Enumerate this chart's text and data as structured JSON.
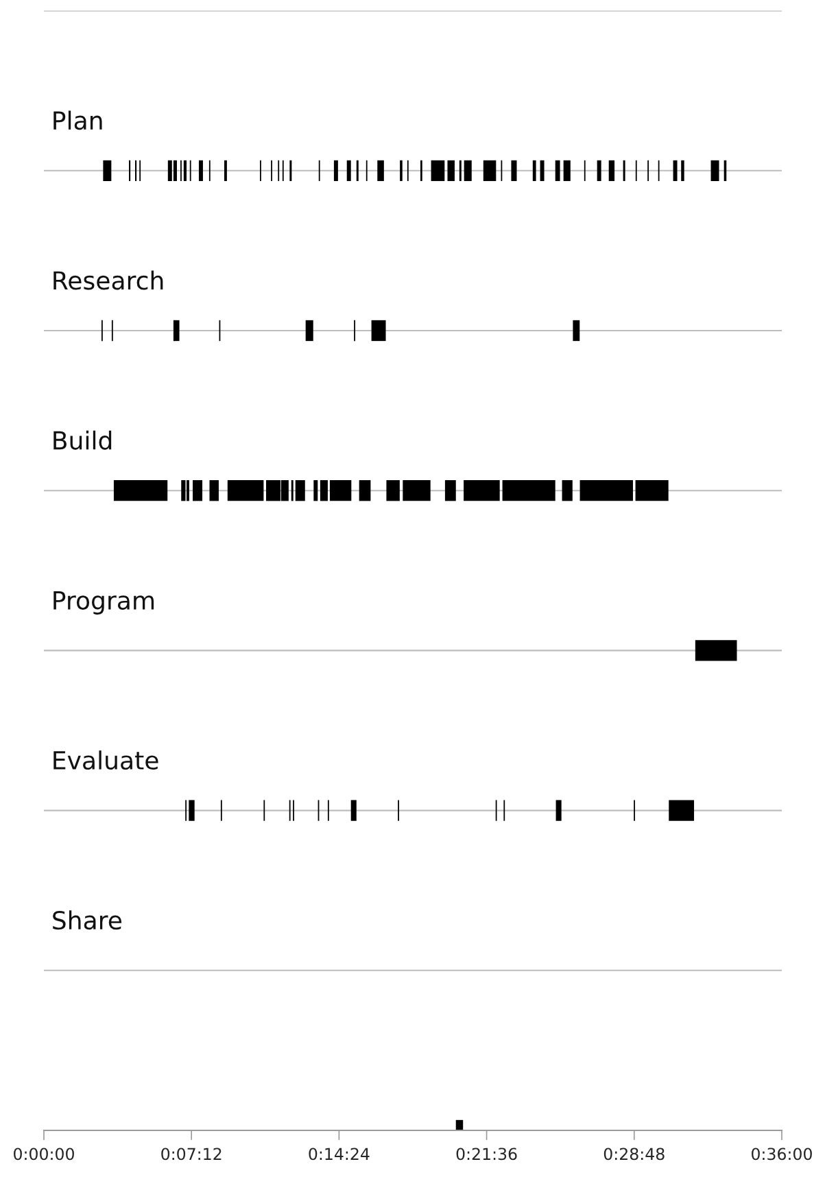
{
  "chart_data": {
    "type": "bar",
    "orientation": "horizontal",
    "color": "#000000",
    "grid": "y",
    "tick_labels": "x",
    "categories": [
      null,
      "Plan",
      "Research",
      "Build",
      "Program",
      "Evaluate",
      "Share",
      null
    ],
    "xlim": [
      0,
      36
    ],
    "xticks": [
      {
        "value": 0,
        "label": "0:00:00"
      },
      {
        "value": 7.2,
        "label": "0:07:12"
      },
      {
        "value": 14.4,
        "label": "0:14:24"
      },
      {
        "value": 21.6,
        "label": "0:21:36"
      },
      {
        "value": 28.8,
        "label": "0:28:48"
      },
      {
        "value": 36,
        "label": "0:36:00"
      }
    ],
    "series": [
      {
        "base": [
          null,
          2.89,
          2.81,
          3.41,
          31.78,
          6.9,
          null,
          20.1
        ],
        "values": [
          null,
          0.4,
          0.06,
          2.62,
          2.03,
          0.06,
          null,
          0.35
        ]
      },
      {
        "base": [
          null,
          4.15,
          3.31,
          6.7,
          null,
          7.07,
          null,
          null
        ],
        "values": [
          null,
          0.07,
          0.06,
          0.21,
          null,
          0.28,
          null,
          null
        ]
      },
      {
        "base": [
          null,
          4.45,
          6.32,
          6.96,
          null,
          8.63,
          null,
          null
        ],
        "values": [
          null,
          0.07,
          0.29,
          0.13,
          null,
          0.06,
          null,
          null
        ]
      },
      {
        "base": [
          null,
          4.66,
          8.55,
          7.26,
          null,
          10.72,
          null,
          null
        ],
        "values": [
          null,
          0.06,
          0.06,
          0.47,
          null,
          0.06,
          null,
          null
        ]
      },
      {
        "base": [
          null,
          6.05,
          12.77,
          8.08,
          null,
          11.97,
          null,
          null
        ],
        "values": [
          null,
          0.2,
          0.37,
          0.45,
          null,
          0.06,
          null,
          null
        ]
      },
      {
        "base": [
          null,
          6.32,
          15.13,
          8.96,
          null,
          12.15,
          null,
          null
        ],
        "values": [
          null,
          0.17,
          0.06,
          1.76,
          null,
          0.06,
          null,
          null
        ]
      },
      {
        "base": [
          null,
          6.66,
          15.98,
          10.84,
          null,
          13.37,
          null,
          null
        ],
        "values": [
          null,
          0.06,
          0.7,
          0.7,
          null,
          0.06,
          null,
          null
        ]
      },
      {
        "base": [
          null,
          6.82,
          25.81,
          11.57,
          null,
          13.85,
          null,
          null
        ],
        "values": [
          null,
          0.14,
          0.33,
          0.37,
          null,
          0.06,
          null,
          null
        ]
      },
      {
        "base": [
          null,
          7.12,
          null,
          12.07,
          null,
          14.98,
          null,
          null
        ],
        "values": [
          null,
          0.06,
          null,
          0.1,
          null,
          0.27,
          null,
          null
        ]
      },
      {
        "base": [
          null,
          7.56,
          null,
          12.27,
          null,
          17.27,
          null,
          null
        ],
        "values": [
          null,
          0.2,
          null,
          0.47,
          null,
          0.06,
          null,
          null
        ]
      },
      {
        "base": [
          null,
          8.06,
          null,
          13.16,
          null,
          22.04,
          null,
          null
        ],
        "values": [
          null,
          0.06,
          null,
          0.2,
          null,
          0.06,
          null,
          null
        ]
      },
      {
        "base": [
          null,
          8.8,
          null,
          13.48,
          null,
          22.43,
          null,
          null
        ],
        "values": [
          null,
          0.13,
          null,
          0.37,
          null,
          0.06,
          null,
          null
        ]
      },
      {
        "base": [
          null,
          10.54,
          null,
          13.95,
          null,
          24.98,
          null,
          null
        ],
        "values": [
          null,
          0.06,
          null,
          1.05,
          null,
          0.27,
          null,
          null
        ]
      },
      {
        "base": [
          null,
          11.08,
          null,
          15.38,
          null,
          28.78,
          null,
          null
        ],
        "values": [
          null,
          0.06,
          null,
          0.56,
          null,
          0.06,
          null,
          null
        ]
      },
      {
        "base": [
          null,
          11.42,
          null,
          16.71,
          null,
          30.49,
          null,
          null
        ],
        "values": [
          null,
          0.06,
          null,
          0.65,
          null,
          1.23,
          null,
          null
        ]
      },
      {
        "base": [
          null,
          11.64,
          null,
          17.51,
          null,
          null,
          null,
          null
        ],
        "values": [
          null,
          0.06,
          null,
          1.35,
          null,
          null,
          null,
          null
        ]
      },
      {
        "base": [
          null,
          11.99,
          null,
          19.57,
          null,
          null,
          null,
          null
        ],
        "values": [
          null,
          0.1,
          null,
          0.53,
          null,
          null,
          null,
          null
        ]
      },
      {
        "base": [
          null,
          13.41,
          null,
          20.48,
          null,
          null,
          null,
          null
        ],
        "values": [
          null,
          0.06,
          null,
          1.76,
          null,
          null,
          null,
          null
        ]
      },
      {
        "base": [
          null,
          14.15,
          null,
          22.37,
          null,
          null,
          null,
          null
        ],
        "values": [
          null,
          0.2,
          null,
          2.58,
          null,
          null,
          null,
          null
        ]
      },
      {
        "base": [
          null,
          14.78,
          null,
          25.28,
          null,
          null,
          null,
          null
        ],
        "values": [
          null,
          0.2,
          null,
          0.51,
          null,
          null,
          null,
          null
        ]
      },
      {
        "base": [
          null,
          15.25,
          null,
          26.15,
          null,
          null,
          null,
          null
        ],
        "values": [
          null,
          0.1,
          null,
          2.59,
          null,
          null,
          null,
          null
        ]
      },
      {
        "base": [
          null,
          15.72,
          null,
          28.86,
          null,
          null,
          null,
          null
        ],
        "values": [
          null,
          0.06,
          null,
          1.61,
          null,
          null,
          null,
          null
        ]
      },
      {
        "base": [
          null,
          16.27,
          null,
          null,
          null,
          null,
          null,
          null
        ],
        "values": [
          null,
          0.32,
          null,
          null,
          null,
          null,
          null,
          null
        ]
      },
      {
        "base": [
          null,
          17.37,
          null,
          null,
          null,
          null,
          null,
          null
        ],
        "values": [
          null,
          0.12,
          null,
          null,
          null,
          null,
          null,
          null
        ]
      },
      {
        "base": [
          null,
          17.73,
          null,
          null,
          null,
          null,
          null,
          null
        ],
        "values": [
          null,
          0.06,
          null,
          null,
          null,
          null,
          null,
          null
        ]
      },
      {
        "base": [
          null,
          18.37,
          null,
          null,
          null,
          null,
          null,
          null
        ],
        "values": [
          null,
          0.09,
          null,
          null,
          null,
          null,
          null,
          null
        ]
      },
      {
        "base": [
          null,
          18.89,
          null,
          null,
          null,
          null,
          null,
          null
        ],
        "values": [
          null,
          0.66,
          null,
          null,
          null,
          null,
          null,
          null
        ]
      },
      {
        "base": [
          null,
          19.69,
          null,
          null,
          null,
          null,
          null,
          null
        ],
        "values": [
          null,
          0.35,
          null,
          null,
          null,
          null,
          null,
          null
        ]
      },
      {
        "base": [
          null,
          20.27,
          null,
          null,
          null,
          null,
          null,
          null
        ],
        "values": [
          null,
          0.1,
          null,
          null,
          null,
          null,
          null,
          null
        ]
      },
      {
        "base": [
          null,
          20.5,
          null,
          null,
          null,
          null,
          null,
          null
        ],
        "values": [
          null,
          0.37,
          null,
          null,
          null,
          null,
          null,
          null
        ]
      },
      {
        "base": [
          null,
          21.44,
          null,
          null,
          null,
          null,
          null,
          null
        ],
        "values": [
          null,
          0.62,
          null,
          null,
          null,
          null,
          null,
          null
        ]
      },
      {
        "base": [
          null,
          22.3,
          null,
          null,
          null,
          null,
          null,
          null
        ],
        "values": [
          null,
          0.06,
          null,
          null,
          null,
          null,
          null,
          null
        ]
      },
      {
        "base": [
          null,
          22.8,
          null,
          null,
          null,
          null,
          null,
          null
        ],
        "values": [
          null,
          0.27,
          null,
          null,
          null,
          null,
          null,
          null
        ]
      },
      {
        "base": [
          null,
          23.85,
          null,
          null,
          null,
          null,
          null,
          null
        ],
        "values": [
          null,
          0.16,
          null,
          null,
          null,
          null,
          null,
          null
        ]
      },
      {
        "base": [
          null,
          24.21,
          null,
          null,
          null,
          null,
          null,
          null
        ],
        "values": [
          null,
          0.2,
          null,
          null,
          null,
          null,
          null,
          null
        ]
      },
      {
        "base": [
          null,
          24.95,
          null,
          null,
          null,
          null,
          null,
          null
        ],
        "values": [
          null,
          0.23,
          null,
          null,
          null,
          null,
          null,
          null
        ]
      },
      {
        "base": [
          null,
          25.35,
          null,
          null,
          null,
          null,
          null,
          null
        ],
        "values": [
          null,
          0.34,
          null,
          null,
          null,
          null,
          null,
          null
        ]
      },
      {
        "base": [
          null,
          26.36,
          null,
          null,
          null,
          null,
          null,
          null
        ],
        "values": [
          null,
          0.06,
          null,
          null,
          null,
          null,
          null,
          null
        ]
      },
      {
        "base": [
          null,
          26.99,
          null,
          null,
          null,
          null,
          null,
          null
        ],
        "values": [
          null,
          0.2,
          null,
          null,
          null,
          null,
          null,
          null
        ]
      },
      {
        "base": [
          null,
          27.56,
          null,
          null,
          null,
          null,
          null,
          null
        ],
        "values": [
          null,
          0.28,
          null,
          null,
          null,
          null,
          null,
          null
        ]
      },
      {
        "base": [
          null,
          28.26,
          null,
          null,
          null,
          null,
          null,
          null
        ],
        "values": [
          null,
          0.1,
          null,
          null,
          null,
          null,
          null,
          null
        ]
      },
      {
        "base": [
          null,
          28.87,
          null,
          null,
          null,
          null,
          null,
          null
        ],
        "values": [
          null,
          0.06,
          null,
          null,
          null,
          null,
          null,
          null
        ]
      },
      {
        "base": [
          null,
          29.45,
          null,
          null,
          null,
          null,
          null,
          null
        ],
        "values": [
          null,
          0.06,
          null,
          null,
          null,
          null,
          null,
          null
        ]
      },
      {
        "base": [
          null,
          29.97,
          null,
          null,
          null,
          null,
          null,
          null
        ],
        "values": [
          null,
          0.06,
          null,
          null,
          null,
          null,
          null,
          null
        ]
      },
      {
        "base": [
          null,
          30.7,
          null,
          null,
          null,
          null,
          null,
          null
        ],
        "values": [
          null,
          0.2,
          null,
          null,
          null,
          null,
          null,
          null
        ]
      },
      {
        "base": [
          null,
          31.09,
          null,
          null,
          null,
          null,
          null,
          null
        ],
        "values": [
          null,
          0.15,
          null,
          null,
          null,
          null,
          null,
          null
        ]
      },
      {
        "base": [
          null,
          32.54,
          null,
          null,
          null,
          null,
          null,
          null
        ],
        "values": [
          null,
          0.4,
          null,
          null,
          null,
          null,
          null,
          null
        ]
      },
      {
        "base": [
          null,
          33.18,
          null,
          null,
          null,
          null,
          null,
          null
        ],
        "values": [
          null,
          0.12,
          null,
          null,
          null,
          null,
          null,
          null
        ]
      }
    ]
  }
}
